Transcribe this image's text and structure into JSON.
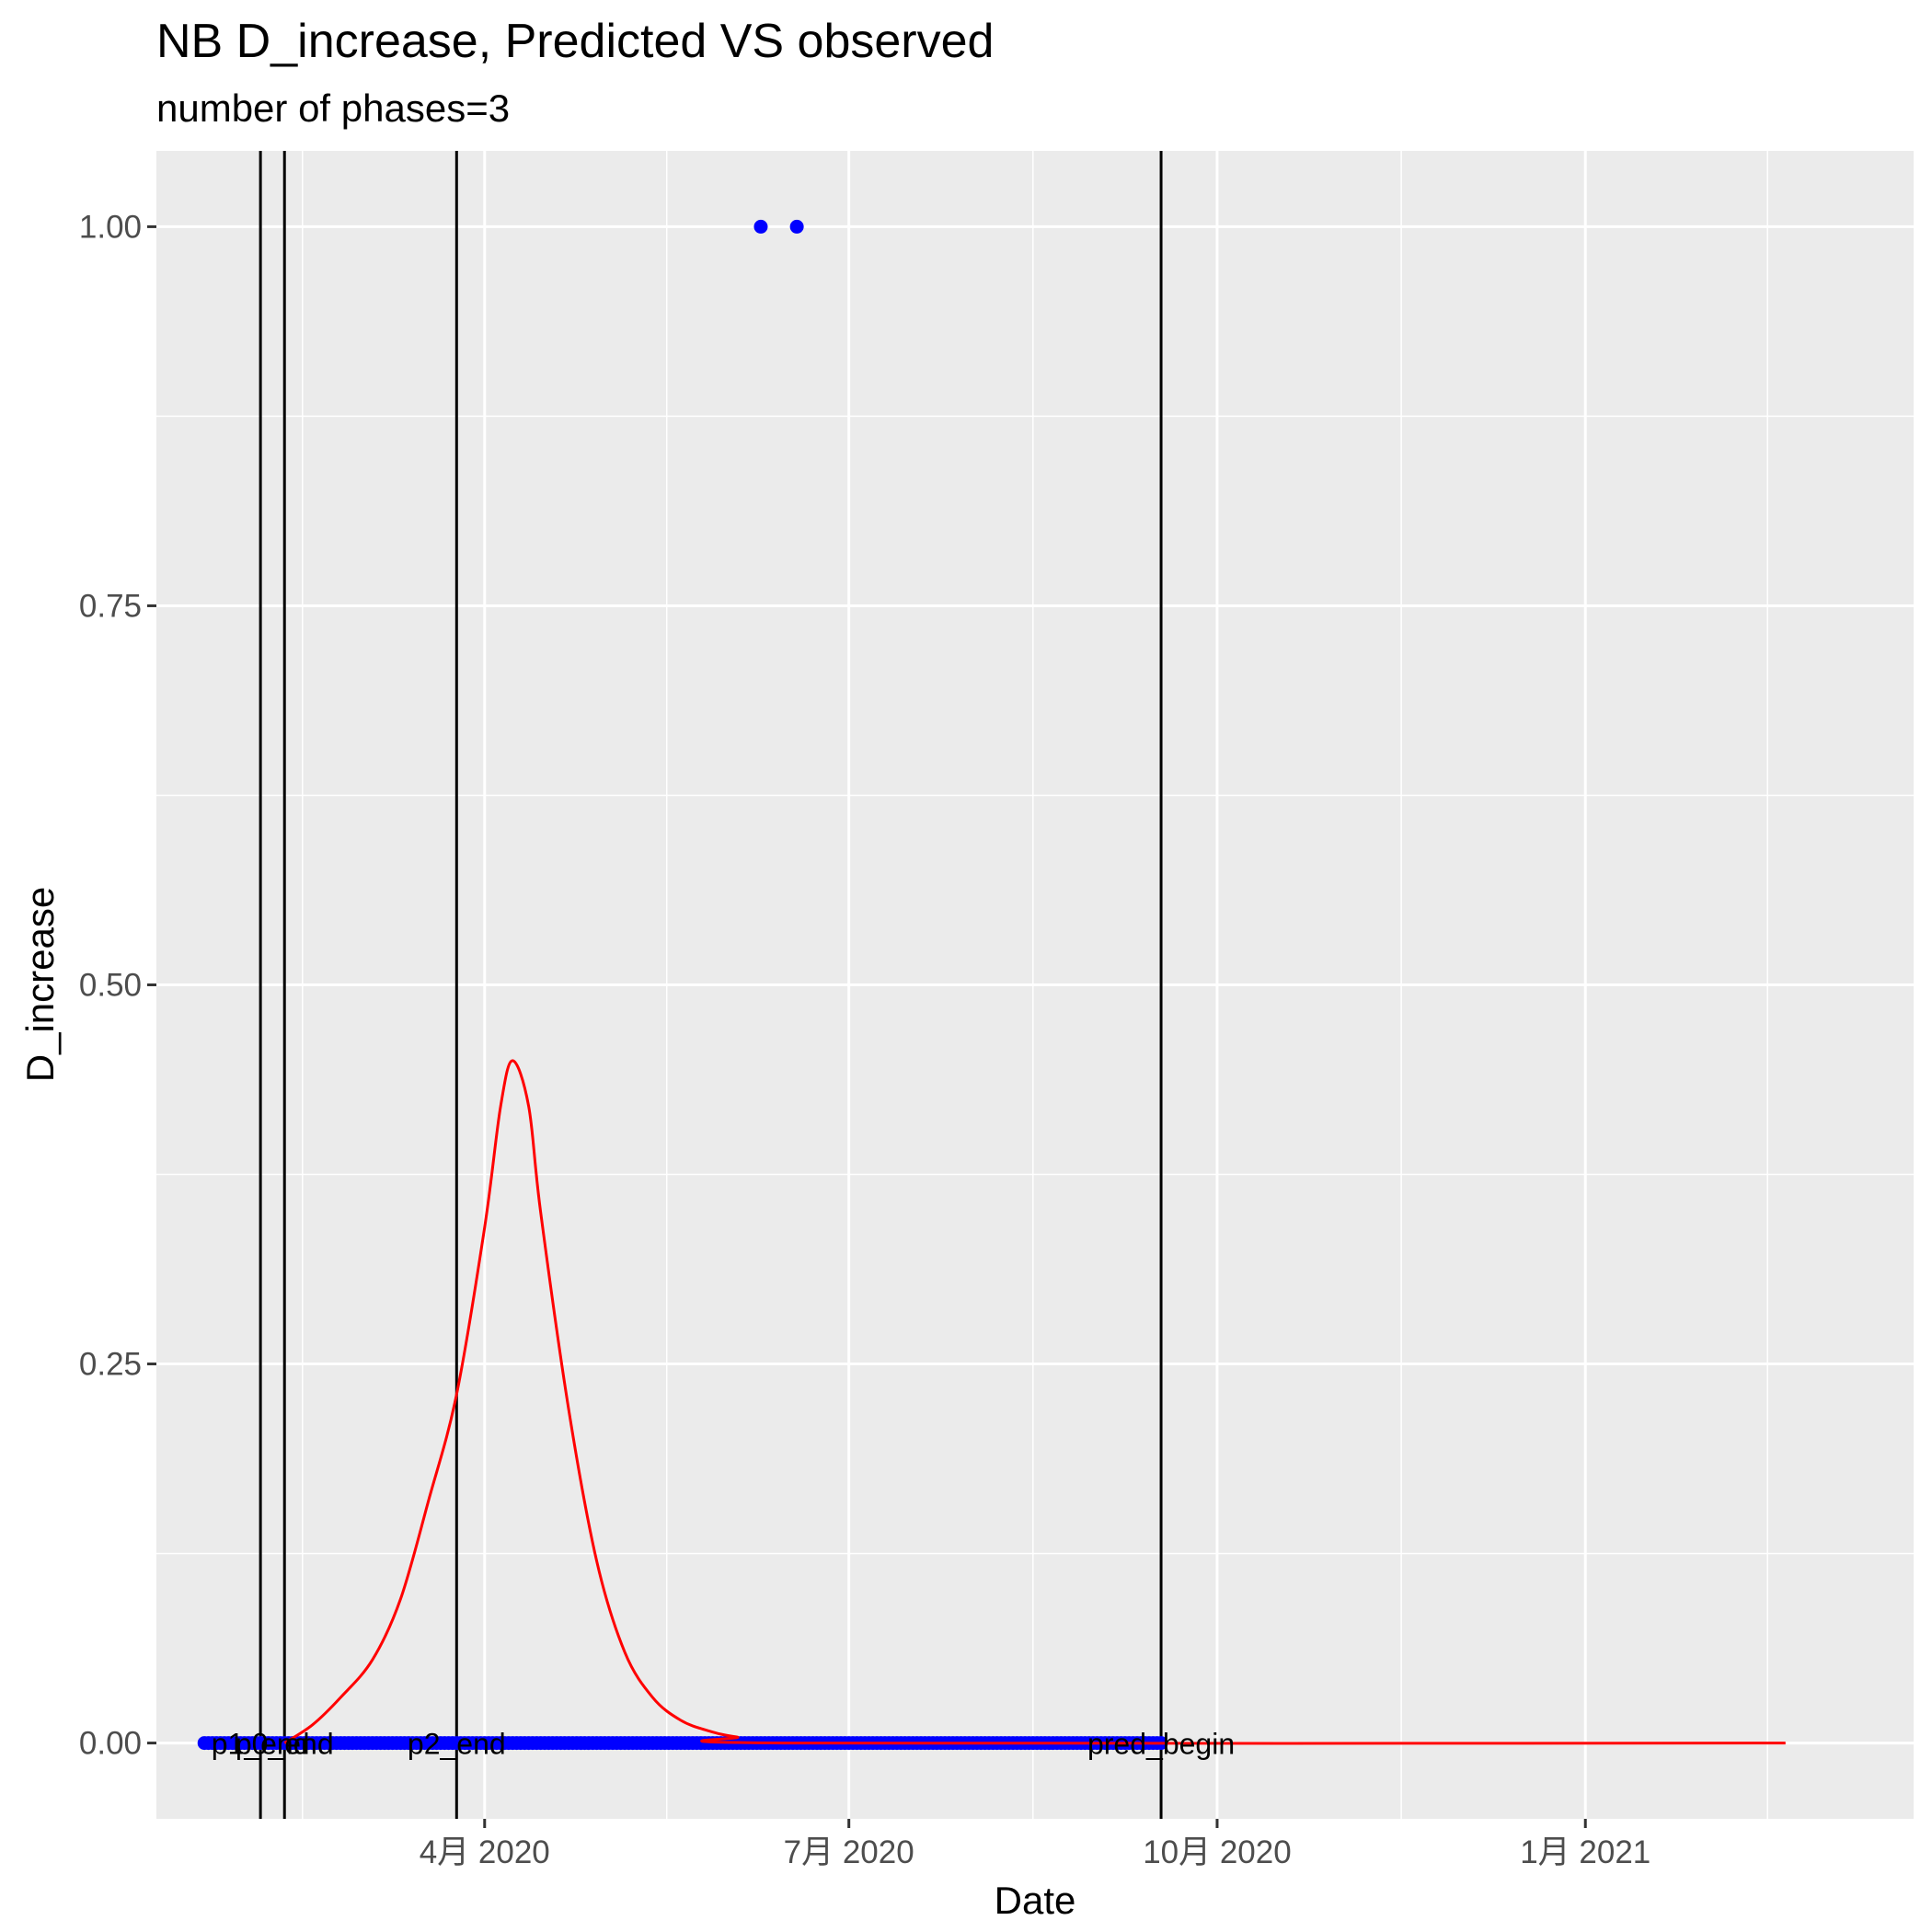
{
  "chart_data": {
    "type": "line",
    "title": "NB D_increase, Predicted VS observed",
    "subtitle": "number of phases=3",
    "xlabel": "Date",
    "ylabel": "D_increase",
    "xlim": [
      "2020-01-10",
      "2021-03-24"
    ],
    "ylim": [
      -0.05,
      1.05
    ],
    "grid": true,
    "x_ticks": [
      {
        "date": "2020-04-01",
        "label": "4月 2020"
      },
      {
        "date": "2020-07-01",
        "label": "7月 2020"
      },
      {
        "date": "2020-10-01",
        "label": "10月 2020"
      },
      {
        "date": "2021-01-01",
        "label": "1月 2021"
      }
    ],
    "y_ticks": [
      {
        "value": 0.0,
        "label": "0.00"
      },
      {
        "value": 0.25,
        "label": "0.25"
      },
      {
        "value": 0.5,
        "label": "0.50"
      },
      {
        "value": 0.75,
        "label": "0.75"
      },
      {
        "value": 1.0,
        "label": "1.00"
      }
    ],
    "vertical_lines": [
      {
        "date": "2020-02-05",
        "label": "p1_end"
      },
      {
        "date": "2020-02-11",
        "label": "p0_end"
      },
      {
        "date": "2020-03-25",
        "label": "p2_end"
      },
      {
        "date": "2020-09-17",
        "label": "pred_begin"
      }
    ],
    "observed": {
      "color": "#0000ff",
      "zero_range": [
        "2020-01-22",
        "2020-09-17"
      ],
      "nonzero_points": [
        {
          "date": "2020-06-09",
          "value": 1
        },
        {
          "date": "2020-06-18",
          "value": 1
        }
      ]
    },
    "predicted": {
      "color": "#ff0000",
      "x_range": [
        "2020-02-11",
        "2021-02-20"
      ],
      "points": [
        {
          "date": "2020-02-11",
          "value": 0.0
        },
        {
          "date": "2020-02-18",
          "value": 0.012
        },
        {
          "date": "2020-02-25",
          "value": 0.03
        },
        {
          "date": "2020-03-04",
          "value": 0.055
        },
        {
          "date": "2020-03-11",
          "value": 0.095
        },
        {
          "date": "2020-03-18",
          "value": 0.16
        },
        {
          "date": "2020-03-25",
          "value": 0.23
        },
        {
          "date": "2020-04-01",
          "value": 0.34
        },
        {
          "date": "2020-04-05",
          "value": 0.42
        },
        {
          "date": "2020-04-08",
          "value": 0.45
        },
        {
          "date": "2020-04-12",
          "value": 0.42
        },
        {
          "date": "2020-04-15",
          "value": 0.35
        },
        {
          "date": "2020-04-22",
          "value": 0.22
        },
        {
          "date": "2020-04-29",
          "value": 0.12
        },
        {
          "date": "2020-05-06",
          "value": 0.06
        },
        {
          "date": "2020-05-13",
          "value": 0.03
        },
        {
          "date": "2020-05-20",
          "value": 0.015
        },
        {
          "date": "2020-05-27",
          "value": 0.008
        },
        {
          "date": "2020-06-03",
          "value": 0.004
        },
        {
          "date": "2020-06-17",
          "value": 0.0
        },
        {
          "date": "2021-02-20",
          "value": 0.0
        }
      ]
    }
  }
}
